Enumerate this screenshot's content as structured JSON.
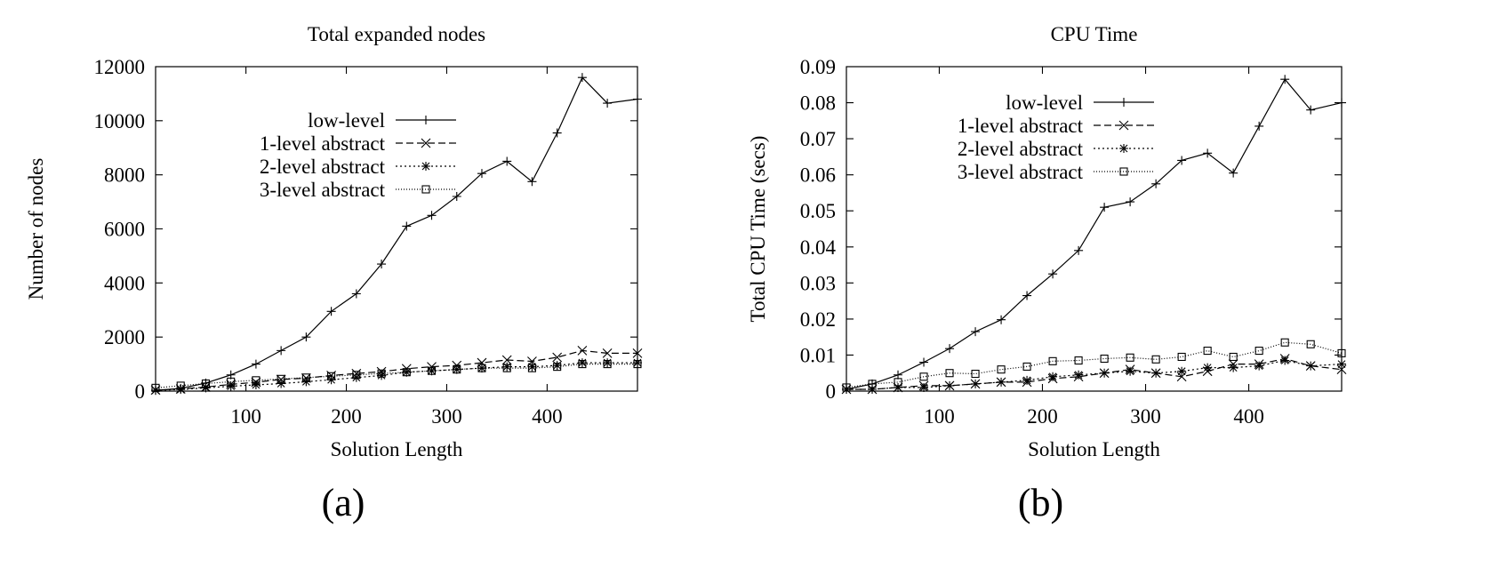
{
  "chart_data": [
    {
      "type": "line",
      "title": "Total expanded nodes",
      "xlabel": "Solution Length",
      "ylabel": "Number of nodes",
      "caption": "(a)",
      "xlim": [
        10,
        490
      ],
      "ylim": [
        0,
        12000
      ],
      "xticks": [
        100,
        200,
        300,
        400
      ],
      "yticks": [
        0,
        2000,
        4000,
        6000,
        8000,
        10000,
        12000
      ],
      "legend_position": "top-left",
      "x": [
        10,
        35,
        60,
        85,
        110,
        135,
        160,
        185,
        210,
        235,
        260,
        285,
        310,
        335,
        360,
        385,
        410,
        435,
        460,
        490
      ],
      "series": [
        {
          "name": "low-level",
          "marker": "plus",
          "dash": "solid",
          "values": [
            30,
            100,
            300,
            600,
            1000,
            1500,
            2000,
            2950,
            3600,
            4700,
            6100,
            6500,
            7200,
            8050,
            8500,
            7750,
            9550,
            11600,
            10650,
            10800
          ]
        },
        {
          "name": "1-level abstract",
          "marker": "x",
          "dash": "dashed",
          "values": [
            40,
            80,
            150,
            250,
            330,
            430,
            480,
            580,
            650,
            720,
            830,
            900,
            950,
            1050,
            1150,
            1100,
            1250,
            1500,
            1400,
            1400
          ]
        },
        {
          "name": "2-level abstract",
          "marker": "star",
          "dash": "dotted",
          "values": [
            30,
            60,
            120,
            180,
            230,
            280,
            350,
            420,
            500,
            580,
            700,
            750,
            800,
            850,
            900,
            900,
            950,
            1050,
            1050,
            1050
          ]
        },
        {
          "name": "3-level abstract",
          "marker": "square",
          "dash": "fine-dotted",
          "values": [
            120,
            200,
            280,
            350,
            400,
            450,
            500,
            550,
            600,
            650,
            700,
            750,
            800,
            850,
            850,
            850,
            900,
            1000,
            1000,
            1000
          ]
        }
      ]
    },
    {
      "type": "line",
      "title": "CPU Time",
      "xlabel": "Solution Length",
      "ylabel": "Total CPU Time (secs)",
      "caption": "(b)",
      "xlim": [
        10,
        490
      ],
      "ylim": [
        0,
        0.09
      ],
      "xticks": [
        100,
        200,
        300,
        400
      ],
      "yticks": [
        0,
        0.01,
        0.02,
        0.03,
        0.04,
        0.05,
        0.06,
        0.07,
        0.08,
        0.09
      ],
      "legend_position": "top-left",
      "x": [
        10,
        35,
        60,
        85,
        110,
        135,
        160,
        185,
        210,
        235,
        260,
        285,
        310,
        335,
        360,
        385,
        410,
        435,
        460,
        490
      ],
      "series": [
        {
          "name": "low-level",
          "marker": "plus",
          "dash": "solid",
          "values": [
            0.0005,
            0.002,
            0.0045,
            0.008,
            0.0118,
            0.0165,
            0.0198,
            0.0265,
            0.0325,
            0.039,
            0.051,
            0.0525,
            0.0575,
            0.064,
            0.066,
            0.0605,
            0.0735,
            0.0865,
            0.078,
            0.08
          ]
        },
        {
          "name": "1-level abstract",
          "marker": "x",
          "dash": "dashed",
          "values": [
            0.0005,
            0.0005,
            0.001,
            0.0015,
            0.0015,
            0.002,
            0.0025,
            0.0025,
            0.0035,
            0.004,
            0.005,
            0.006,
            0.005,
            0.004,
            0.0055,
            0.0075,
            0.0075,
            0.009,
            0.007,
            0.006
          ]
        },
        {
          "name": "2-level abstract",
          "marker": "star",
          "dash": "dotted",
          "values": [
            0.0005,
            0.0005,
            0.001,
            0.001,
            0.0015,
            0.002,
            0.0025,
            0.003,
            0.004,
            0.0045,
            0.005,
            0.0055,
            0.005,
            0.0055,
            0.0065,
            0.0065,
            0.007,
            0.0085,
            0.007,
            0.0075
          ]
        },
        {
          "name": "3-level abstract",
          "marker": "square",
          "dash": "fine-dotted",
          "values": [
            0.001,
            0.002,
            0.0025,
            0.004,
            0.005,
            0.0048,
            0.006,
            0.0068,
            0.0083,
            0.0085,
            0.009,
            0.0093,
            0.0088,
            0.0095,
            0.0112,
            0.0095,
            0.0112,
            0.0135,
            0.013,
            0.0105
          ]
        }
      ]
    }
  ]
}
